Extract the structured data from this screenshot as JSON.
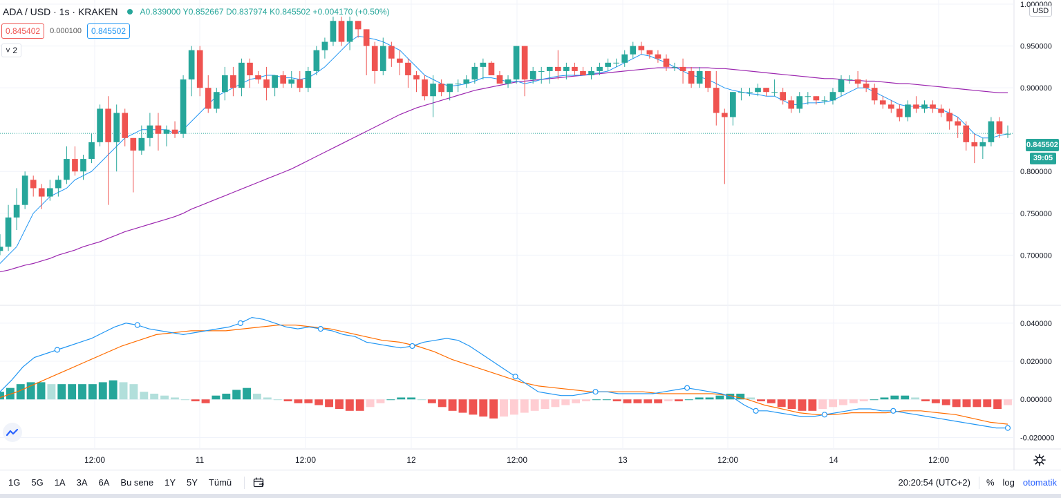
{
  "legend": {
    "symbol": "ADA / USD · 1s · KRAKEN",
    "ohlc": "A0.839000 Y0.852667 D0.837974 K0.845502 +0.004170 (+0.50%)"
  },
  "prices": {
    "sell": "0.845402",
    "spread": "0.000100",
    "buy": "0.845502"
  },
  "indicator_toggle": "˅ 2",
  "currency_label": "USD",
  "price_axis": {
    "main_ticks": [
      "0.950000",
      "0.900000",
      "0.800000",
      "0.750000",
      "0.700000"
    ],
    "top_partial": "1.000000",
    "last_price": "0.845502",
    "countdown": "39:05",
    "macd_ticks": [
      "0.040000",
      "0.020000",
      "0.000000",
      "-0.020000"
    ]
  },
  "time_axis": [
    "12:00",
    "11",
    "12:00",
    "12",
    "12:00",
    "13",
    "12:00",
    "14",
    "12:00"
  ],
  "bottom_bar": {
    "ranges": [
      "1G",
      "5G",
      "1A",
      "3A",
      "6A",
      "Bu sene",
      "1Y",
      "5Y",
      "Tümü"
    ],
    "clock": "20:20:54 (UTC+2)",
    "percent": "%",
    "log": "log",
    "auto": "otomatik"
  },
  "colors": {
    "up": "#26a69a",
    "down": "#ef5350",
    "ma_fast": "#2196f3",
    "ma_slow": "#9c27b0",
    "macd": "#2196f3",
    "signal": "#ff6d00",
    "hist_up_strong": "#26a69a",
    "hist_up_weak": "#b2dfdb",
    "hist_down_strong": "#ef5350",
    "hist_down_weak": "#ffcdd2"
  },
  "chart_data": {
    "type": "candlestick",
    "symbol": "ADA / USD",
    "interval": "1s",
    "exchange": "KRAKEN",
    "price_range": [
      0.64,
      1.005
    ],
    "last_price": 0.845502,
    "candles": [
      [
        0.705,
        0.725,
        0.7,
        0.71
      ],
      [
        0.71,
        0.76,
        0.705,
        0.745
      ],
      [
        0.745,
        0.78,
        0.73,
        0.76
      ],
      [
        0.76,
        0.8,
        0.755,
        0.795
      ],
      [
        0.79,
        0.795,
        0.77,
        0.78
      ],
      [
        0.78,
        0.785,
        0.755,
        0.77
      ],
      [
        0.77,
        0.79,
        0.765,
        0.78
      ],
      [
        0.78,
        0.795,
        0.77,
        0.79
      ],
      [
        0.79,
        0.83,
        0.785,
        0.815
      ],
      [
        0.815,
        0.83,
        0.795,
        0.8
      ],
      [
        0.8,
        0.82,
        0.79,
        0.815
      ],
      [
        0.815,
        0.845,
        0.81,
        0.835
      ],
      [
        0.835,
        0.88,
        0.83,
        0.875
      ],
      [
        0.875,
        0.89,
        0.76,
        0.835
      ],
      [
        0.835,
        0.88,
        0.8,
        0.87
      ],
      [
        0.87,
        0.875,
        0.83,
        0.84
      ],
      [
        0.84,
        0.84,
        0.775,
        0.825
      ],
      [
        0.825,
        0.855,
        0.82,
        0.84
      ],
      [
        0.84,
        0.87,
        0.83,
        0.855
      ],
      [
        0.855,
        0.87,
        0.825,
        0.845
      ],
      [
        0.845,
        0.855,
        0.83,
        0.85
      ],
      [
        0.85,
        0.86,
        0.84,
        0.845
      ],
      [
        0.845,
        0.915,
        0.84,
        0.91
      ],
      [
        0.91,
        0.95,
        0.89,
        0.945
      ],
      [
        0.945,
        0.95,
        0.89,
        0.9
      ],
      [
        0.9,
        0.915,
        0.87,
        0.875
      ],
      [
        0.875,
        0.9,
        0.87,
        0.895
      ],
      [
        0.895,
        0.925,
        0.885,
        0.915
      ],
      [
        0.915,
        0.925,
        0.89,
        0.9
      ],
      [
        0.9,
        0.935,
        0.89,
        0.93
      ],
      [
        0.93,
        0.935,
        0.9,
        0.915
      ],
      [
        0.915,
        0.92,
        0.905,
        0.91
      ],
      [
        0.91,
        0.925,
        0.885,
        0.9
      ],
      [
        0.9,
        0.915,
        0.89,
        0.915
      ],
      [
        0.915,
        0.92,
        0.9,
        0.905
      ],
      [
        0.905,
        0.92,
        0.9,
        0.91
      ],
      [
        0.91,
        0.92,
        0.895,
        0.9
      ],
      [
        0.9,
        0.925,
        0.895,
        0.92
      ],
      [
        0.92,
        0.95,
        0.915,
        0.945
      ],
      [
        0.945,
        0.96,
        0.935,
        0.955
      ],
      [
        0.955,
        0.985,
        0.95,
        0.98
      ],
      [
        0.98,
        0.985,
        0.95,
        0.955
      ],
      [
        0.955,
        0.985,
        0.945,
        0.98
      ],
      [
        0.98,
        0.98,
        0.96,
        0.97
      ],
      [
        0.97,
        0.97,
        0.915,
        0.95
      ],
      [
        0.95,
        0.955,
        0.905,
        0.92
      ],
      [
        0.92,
        0.96,
        0.915,
        0.95
      ],
      [
        0.95,
        0.955,
        0.925,
        0.935
      ],
      [
        0.935,
        0.945,
        0.915,
        0.93
      ],
      [
        0.93,
        0.935,
        0.9,
        0.915
      ],
      [
        0.915,
        0.92,
        0.895,
        0.91
      ],
      [
        0.91,
        0.915,
        0.885,
        0.89
      ],
      [
        0.89,
        0.915,
        0.865,
        0.905
      ],
      [
        0.905,
        0.91,
        0.89,
        0.895
      ],
      [
        0.895,
        0.905,
        0.885,
        0.905
      ],
      [
        0.905,
        0.91,
        0.895,
        0.905
      ],
      [
        0.905,
        0.915,
        0.9,
        0.91
      ],
      [
        0.91,
        0.93,
        0.905,
        0.925
      ],
      [
        0.925,
        0.935,
        0.91,
        0.93
      ],
      [
        0.93,
        0.932,
        0.915,
        0.915
      ],
      [
        0.915,
        0.92,
        0.905,
        0.905
      ],
      [
        0.905,
        0.915,
        0.9,
        0.91
      ],
      [
        0.91,
        0.95,
        0.905,
        0.95
      ],
      [
        0.95,
        0.95,
        0.89,
        0.91
      ],
      [
        0.91,
        0.925,
        0.905,
        0.92
      ],
      [
        0.92,
        0.925,
        0.905,
        0.92
      ],
      [
        0.92,
        0.925,
        0.905,
        0.925
      ],
      [
        0.925,
        0.945,
        0.91,
        0.92
      ],
      [
        0.92,
        0.93,
        0.91,
        0.925
      ],
      [
        0.925,
        0.93,
        0.915,
        0.92
      ],
      [
        0.92,
        0.925,
        0.915,
        0.915
      ],
      [
        0.915,
        0.925,
        0.91,
        0.92
      ],
      [
        0.92,
        0.93,
        0.915,
        0.925
      ],
      [
        0.925,
        0.935,
        0.92,
        0.93
      ],
      [
        0.93,
        0.935,
        0.925,
        0.93
      ],
      [
        0.93,
        0.945,
        0.925,
        0.94
      ],
      [
        0.94,
        0.955,
        0.935,
        0.95
      ],
      [
        0.95,
        0.955,
        0.94,
        0.945
      ],
      [
        0.945,
        0.945,
        0.935,
        0.94
      ],
      [
        0.94,
        0.945,
        0.93,
        0.935
      ],
      [
        0.935,
        0.94,
        0.92,
        0.925
      ],
      [
        0.925,
        0.93,
        0.92,
        0.925
      ],
      [
        0.925,
        0.935,
        0.905,
        0.92
      ],
      [
        0.92,
        0.925,
        0.9,
        0.905
      ],
      [
        0.905,
        0.925,
        0.9,
        0.92
      ],
      [
        0.92,
        0.92,
        0.895,
        0.9
      ],
      [
        0.9,
        0.92,
        0.855,
        0.87
      ],
      [
        0.87,
        0.875,
        0.785,
        0.865
      ],
      [
        0.865,
        0.895,
        0.855,
        0.895
      ],
      [
        0.895,
        0.9,
        0.885,
        0.895
      ],
      [
        0.895,
        0.9,
        0.89,
        0.895
      ],
      [
        0.895,
        0.905,
        0.89,
        0.9
      ],
      [
        0.9,
        0.9,
        0.89,
        0.895
      ],
      [
        0.895,
        0.91,
        0.89,
        0.895
      ],
      [
        0.895,
        0.9,
        0.88,
        0.885
      ],
      [
        0.885,
        0.89,
        0.87,
        0.875
      ],
      [
        0.875,
        0.895,
        0.87,
        0.89
      ],
      [
        0.89,
        0.895,
        0.88,
        0.89
      ],
      [
        0.89,
        0.89,
        0.88,
        0.885
      ],
      [
        0.885,
        0.89,
        0.88,
        0.885
      ],
      [
        0.885,
        0.9,
        0.88,
        0.895
      ],
      [
        0.895,
        0.915,
        0.89,
        0.91
      ],
      [
        0.91,
        0.915,
        0.905,
        0.91
      ],
      [
        0.91,
        0.92,
        0.9,
        0.905
      ],
      [
        0.905,
        0.91,
        0.895,
        0.9
      ],
      [
        0.9,
        0.905,
        0.88,
        0.885
      ],
      [
        0.885,
        0.89,
        0.875,
        0.88
      ],
      [
        0.88,
        0.885,
        0.87,
        0.875
      ],
      [
        0.875,
        0.88,
        0.86,
        0.865
      ],
      [
        0.865,
        0.885,
        0.86,
        0.88
      ],
      [
        0.88,
        0.89,
        0.87,
        0.875
      ],
      [
        0.875,
        0.885,
        0.87,
        0.88
      ],
      [
        0.88,
        0.885,
        0.87,
        0.875
      ],
      [
        0.875,
        0.88,
        0.865,
        0.87
      ],
      [
        0.87,
        0.875,
        0.85,
        0.86
      ],
      [
        0.86,
        0.865,
        0.84,
        0.855
      ],
      [
        0.855,
        0.86,
        0.825,
        0.835
      ],
      [
        0.835,
        0.845,
        0.81,
        0.83
      ],
      [
        0.83,
        0.84,
        0.815,
        0.835
      ],
      [
        0.835,
        0.865,
        0.83,
        0.86
      ],
      [
        0.86,
        0.865,
        0.84,
        0.845
      ],
      [
        0.845,
        0.855,
        0.84,
        0.845
      ]
    ],
    "ma_fast": [
      0.69,
      0.7,
      0.71,
      0.73,
      0.75,
      0.76,
      0.77,
      0.775,
      0.78,
      0.79,
      0.795,
      0.8,
      0.81,
      0.82,
      0.83,
      0.84,
      0.845,
      0.85,
      0.85,
      0.85,
      0.85,
      0.845,
      0.85,
      0.86,
      0.87,
      0.88,
      0.89,
      0.895,
      0.9,
      0.905,
      0.91,
      0.912,
      0.915,
      0.915,
      0.912,
      0.912,
      0.91,
      0.912,
      0.918,
      0.925,
      0.935,
      0.945,
      0.955,
      0.962,
      0.96,
      0.958,
      0.955,
      0.95,
      0.945,
      0.935,
      0.925,
      0.915,
      0.91,
      0.905,
      0.902,
      0.903,
      0.905,
      0.908,
      0.912,
      0.912,
      0.91,
      0.907,
      0.908,
      0.905,
      0.907,
      0.91,
      0.912,
      0.914,
      0.915,
      0.915,
      0.915,
      0.917,
      0.918,
      0.92,
      0.925,
      0.93,
      0.935,
      0.94,
      0.938,
      0.934,
      0.93,
      0.925,
      0.92,
      0.915,
      0.913,
      0.91,
      0.905,
      0.9,
      0.897,
      0.895,
      0.893,
      0.892,
      0.89,
      0.89,
      0.885,
      0.88,
      0.88,
      0.882,
      0.882,
      0.883,
      0.885,
      0.89,
      0.895,
      0.9,
      0.9,
      0.895,
      0.89,
      0.885,
      0.88,
      0.878,
      0.878,
      0.877,
      0.876,
      0.874,
      0.87,
      0.865,
      0.855,
      0.845,
      0.84,
      0.84,
      0.843,
      0.845
    ],
    "ma_slow": [
      0.68,
      0.682,
      0.685,
      0.688,
      0.69,
      0.693,
      0.696,
      0.7,
      0.703,
      0.706,
      0.71,
      0.713,
      0.716,
      0.72,
      0.724,
      0.728,
      0.731,
      0.734,
      0.737,
      0.74,
      0.743,
      0.746,
      0.75,
      0.755,
      0.759,
      0.763,
      0.767,
      0.771,
      0.775,
      0.779,
      0.783,
      0.787,
      0.791,
      0.795,
      0.799,
      0.803,
      0.808,
      0.813,
      0.818,
      0.823,
      0.828,
      0.833,
      0.838,
      0.843,
      0.848,
      0.853,
      0.858,
      0.863,
      0.868,
      0.872,
      0.876,
      0.879,
      0.882,
      0.885,
      0.888,
      0.891,
      0.894,
      0.897,
      0.899,
      0.901,
      0.903,
      0.905,
      0.907,
      0.908,
      0.909,
      0.91,
      0.911,
      0.912,
      0.913,
      0.914,
      0.915,
      0.916,
      0.917,
      0.918,
      0.919,
      0.92,
      0.921,
      0.922,
      0.923,
      0.924,
      0.924,
      0.924,
      0.924,
      0.924,
      0.924,
      0.924,
      0.923,
      0.923,
      0.922,
      0.921,
      0.92,
      0.919,
      0.918,
      0.917,
      0.916,
      0.915,
      0.914,
      0.913,
      0.912,
      0.911,
      0.911,
      0.91,
      0.909,
      0.909,
      0.908,
      0.908,
      0.907,
      0.906,
      0.905,
      0.905,
      0.904,
      0.903,
      0.902,
      0.901,
      0.9,
      0.899,
      0.898,
      0.897,
      0.896,
      0.895,
      0.894,
      0.894
    ],
    "macd_range": [
      -0.026,
      0.049
    ],
    "macd": [
      0.004,
      0.01,
      0.017,
      0.022,
      0.024,
      0.026,
      0.028,
      0.03,
      0.032,
      0.035,
      0.038,
      0.04,
      0.039,
      0.037,
      0.036,
      0.035,
      0.034,
      0.035,
      0.036,
      0.037,
      0.038,
      0.04,
      0.043,
      0.042,
      0.04,
      0.038,
      0.037,
      0.038,
      0.037,
      0.036,
      0.034,
      0.033,
      0.03,
      0.029,
      0.028,
      0.027,
      0.028,
      0.03,
      0.031,
      0.032,
      0.031,
      0.028,
      0.024,
      0.02,
      0.016,
      0.012,
      0.008,
      0.004,
      0.003,
      0.002,
      0.002,
      0.003,
      0.004,
      0.004,
      0.003,
      0.003,
      0.003,
      0.003,
      0.004,
      0.005,
      0.006,
      0.005,
      0.004,
      0.003,
      0.001,
      -0.003,
      -0.006,
      -0.006,
      -0.007,
      -0.008,
      -0.009,
      -0.009,
      -0.008,
      -0.007,
      -0.006,
      -0.005,
      -0.005,
      -0.006,
      -0.006,
      -0.007,
      -0.008,
      -0.009,
      -0.01,
      -0.011,
      -0.012,
      -0.013,
      -0.014,
      -0.015,
      -0.015
    ],
    "signal": [
      0.001,
      0.004,
      0.008,
      0.012,
      0.016,
      0.02,
      0.024,
      0.028,
      0.031,
      0.034,
      0.035,
      0.036,
      0.036,
      0.036,
      0.037,
      0.038,
      0.039,
      0.039,
      0.038,
      0.037,
      0.035,
      0.033,
      0.031,
      0.03,
      0.028,
      0.025,
      0.021,
      0.018,
      0.015,
      0.012,
      0.009,
      0.007,
      0.006,
      0.005,
      0.004,
      0.004,
      0.004,
      0.004,
      0.003,
      0.003,
      0.003,
      0.003,
      0.002,
      0.0,
      -0.003,
      -0.005,
      -0.007,
      -0.008,
      -0.008,
      -0.007,
      -0.007,
      -0.007,
      -0.006,
      -0.006,
      -0.007,
      -0.008,
      -0.01,
      -0.012,
      -0.013
    ],
    "histogram": [
      0.004,
      0.006,
      0.008,
      0.009,
      0.009,
      0.008,
      0.008,
      0.008,
      0.008,
      0.008,
      0.009,
      0.01,
      0.009,
      0.008,
      0.004,
      0.003,
      0.002,
      0.001,
      0.0,
      -0.001,
      -0.002,
      0.002,
      0.003,
      0.005,
      0.006,
      0.003,
      0.001,
      0.0,
      -0.001,
      -0.002,
      -0.002,
      -0.003,
      -0.004,
      -0.005,
      -0.006,
      -0.006,
      -0.004,
      -0.002,
      0.0,
      0.001,
      0.001,
      0.0,
      -0.002,
      -0.004,
      -0.006,
      -0.007,
      -0.008,
      -0.009,
      -0.01,
      -0.009,
      -0.008,
      -0.007,
      -0.006,
      -0.005,
      -0.004,
      -0.003,
      -0.002,
      -0.001,
      0.0,
      0.0,
      -0.001,
      -0.002,
      -0.002,
      -0.002,
      -0.002,
      -0.001,
      -0.001,
      0.0,
      0.001,
      0.001,
      0.002,
      0.003,
      0.003,
      0.001,
      -0.001,
      -0.002,
      -0.004,
      -0.005,
      -0.006,
      -0.006,
      -0.005,
      -0.004,
      -0.003,
      -0.002,
      -0.001,
      0.0,
      0.001,
      0.002,
      0.002,
      0.001,
      -0.001,
      -0.002,
      -0.003,
      -0.004,
      -0.004,
      -0.004,
      -0.004,
      -0.005,
      -0.003
    ]
  }
}
